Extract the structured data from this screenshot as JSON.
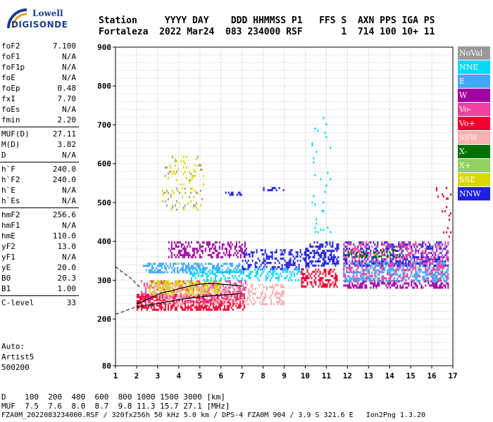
{
  "logo": {
    "line1": "Lowell",
    "line2": "DIGISONDE"
  },
  "header": {
    "line1": "Station     YYYY DAY    DDD HHMMSS P1   FFS S  AXN PPS IGA PS",
    "line2": "Fortaleza  2022 Mar24  083 234000 RSF       1  714 100 10+ 11"
  },
  "params_groups": [
    [
      [
        "foF2",
        "7.100"
      ],
      [
        "foF1",
        "N/A"
      ],
      [
        "foF1p",
        "N/A"
      ],
      [
        "foE",
        "N/A"
      ],
      [
        "foEp",
        "0.48"
      ],
      [
        "fxI",
        "7.70"
      ],
      [
        "foEs",
        "N/A"
      ],
      [
        "fmin",
        "2.20"
      ]
    ],
    [
      [
        "MUF(D)",
        "27.11"
      ],
      [
        "M(D)",
        "3.82"
      ],
      [
        "D",
        "N/A"
      ]
    ],
    [
      [
        "h`F",
        "240.0"
      ],
      [
        "h`F2",
        "240.0"
      ],
      [
        "h`E",
        "N/A"
      ],
      [
        "h`Es",
        "N/A"
      ]
    ],
    [
      [
        "hmF2",
        "256.6"
      ],
      [
        "hmF1",
        "N/A"
      ],
      [
        "hmE",
        "110.0"
      ],
      [
        "yF2",
        "13.0"
      ],
      [
        "yF1",
        "N/A"
      ],
      [
        "yE",
        "20.0"
      ],
      [
        "B0",
        "20.3"
      ],
      [
        "B1",
        "1.00"
      ]
    ],
    [
      [
        "C-level",
        "33"
      ]
    ]
  ],
  "auto": {
    "line1": "Auto:",
    "line2": "Artist5",
    "line3": "500200"
  },
  "legend": [
    {
      "label": "NoVal",
      "color": "#9a9a9a"
    },
    {
      "label": "NNE",
      "color": "#00d8f8"
    },
    {
      "label": "E",
      "color": "#40a8f8"
    },
    {
      "label": "W",
      "color": "#a000a0"
    },
    {
      "label": "Vo-",
      "color": "#f040a0"
    },
    {
      "label": "Vo+",
      "color": "#f00030"
    },
    {
      "label": "SSW",
      "color": "#f8b0b0"
    },
    {
      "label": "X-",
      "color": "#007000"
    },
    {
      "label": "X+",
      "color": "#90d060"
    },
    {
      "label": "SSE",
      "color": "#d8d800"
    },
    {
      "label": "NNW",
      "color": "#2020e0"
    }
  ],
  "footer": {
    "line1": "D    100  200  400  600  800 1000 1500 3000 [km]",
    "line2": "MUF  7.5  7.6  8.0  8.7  9.8 11.3 15.7 27.1 [MHz]",
    "line3": "FZA0M_2022083234000.RSF / 320fx256h 50 kHz 5.0 km / DPS-4 FZA0M 904 / 3.9 S 321.6 E   Ion2Png 1.3.20"
  },
  "chart_data": {
    "type": "scatter",
    "title": "",
    "xlabel": "",
    "ylabel": "",
    "xlim": [
      1,
      17
    ],
    "ylim": [
      80,
      900
    ],
    "x_ticks": [
      1,
      2,
      3,
      4,
      5,
      6,
      7,
      8,
      9,
      10,
      11,
      12,
      13,
      14,
      15,
      16,
      17
    ],
    "y_ticks": [
      80,
      200,
      300,
      400,
      500,
      600,
      700,
      800,
      900
    ],
    "grid": "dotted",
    "series": [
      {
        "name": "profile",
        "x": [
          2.0,
          2.5,
          3.0,
          3.5,
          4.0,
          4.5,
          5.0,
          5.5,
          6.0,
          6.5,
          7.0
        ],
        "y": [
          230,
          236,
          240,
          245,
          250,
          254,
          257,
          260,
          262,
          264,
          266
        ]
      },
      {
        "name": "trace",
        "x": [
          2.0,
          2.4,
          2.8,
          3.2,
          3.6,
          4.0,
          4.5,
          5.0,
          5.5,
          6.0,
          6.5,
          7.0
        ],
        "y": [
          240,
          248,
          258,
          268,
          272,
          278,
          285,
          290,
          292,
          290,
          288,
          285
        ]
      }
    ],
    "dashed_curve": {
      "x": [
        1.0,
        1.2,
        1.5,
        1.8,
        2.0,
        2.2
      ],
      "y_upper": [
        335,
        326,
        314,
        302,
        290,
        280
      ],
      "y_lower": [
        213,
        216,
        222,
        228,
        232,
        236
      ]
    },
    "scatter_regions": [
      {
        "color": "#40a8f8",
        "x": [
          2.3,
          7.1
        ],
        "y": [
          320,
          345
        ],
        "density": 0.55
      },
      {
        "color": "#f00030",
        "x": [
          2.0,
          7.1
        ],
        "y": [
          225,
          265
        ],
        "density": 0.6
      },
      {
        "color": "#f040a0",
        "x": [
          2.2,
          7.2
        ],
        "y": [
          245,
          300
        ],
        "density": 0.4
      },
      {
        "color": "#d8d800",
        "x": [
          2.6,
          6.0
        ],
        "y": [
          265,
          300
        ],
        "density": 0.55
      },
      {
        "color": "#f8b0b0",
        "x": [
          2.8,
          9.0
        ],
        "y": [
          240,
          290
        ],
        "density": 0.35
      },
      {
        "color": "#a000a0",
        "x": [
          3.5,
          7.2
        ],
        "y": [
          360,
          400
        ],
        "density": 0.4
      },
      {
        "color": "#2020e0",
        "x": [
          7.0,
          10.2
        ],
        "y": [
          330,
          380
        ],
        "density": 0.35
      },
      {
        "color": "#00d8f8",
        "x": [
          4.5,
          10.0
        ],
        "y": [
          300,
          330
        ],
        "density": 0.3
      },
      {
        "color": "#2020e0",
        "x": [
          10.0,
          11.6
        ],
        "y": [
          340,
          400
        ],
        "density": 0.5
      },
      {
        "color": "#f00030",
        "x": [
          9.8,
          11.5
        ],
        "y": [
          285,
          330
        ],
        "density": 0.5
      },
      {
        "color": "#a000a0",
        "x": [
          11.8,
          16.8
        ],
        "y": [
          280,
          300
        ],
        "density": 0.5
      },
      {
        "color": "#40a8f8",
        "x": [
          11.8,
          16.8
        ],
        "y": [
          300,
          350
        ],
        "density": 0.5
      },
      {
        "color": "#2020e0",
        "x": [
          11.8,
          16.8
        ],
        "y": [
          340,
          400
        ],
        "density": 0.35
      },
      {
        "color": "#f040a0",
        "x": [
          11.8,
          16.8
        ],
        "y": [
          300,
          400
        ],
        "density": 0.3
      },
      {
        "color": "#007000",
        "x": [
          11.9,
          14.5
        ],
        "y": [
          360,
          380
        ],
        "density": 0.2
      },
      {
        "color": "#d8d800",
        "x": [
          3.2,
          5.2
        ],
        "y": [
          480,
          620
        ],
        "density": 0.08
      },
      {
        "color": "#9a9a9a",
        "x": [
          3.2,
          5.2
        ],
        "y": [
          480,
          620
        ],
        "density": 0.05
      },
      {
        "color": "#2020e0",
        "x": [
          8.0,
          9.2
        ],
        "y": [
          530,
          540
        ],
        "density": 0.35
      },
      {
        "color": "#2020e0",
        "x": [
          6.2,
          7.0
        ],
        "y": [
          520,
          528
        ],
        "density": 0.35
      },
      {
        "color": "#00d8f8",
        "x": [
          10.3,
          11.2
        ],
        "y": [
          420,
          720
        ],
        "density": 0.03
      },
      {
        "color": "#f00030",
        "x": [
          16.2,
          16.9
        ],
        "y": [
          400,
          540
        ],
        "density": 0.06
      }
    ]
  }
}
